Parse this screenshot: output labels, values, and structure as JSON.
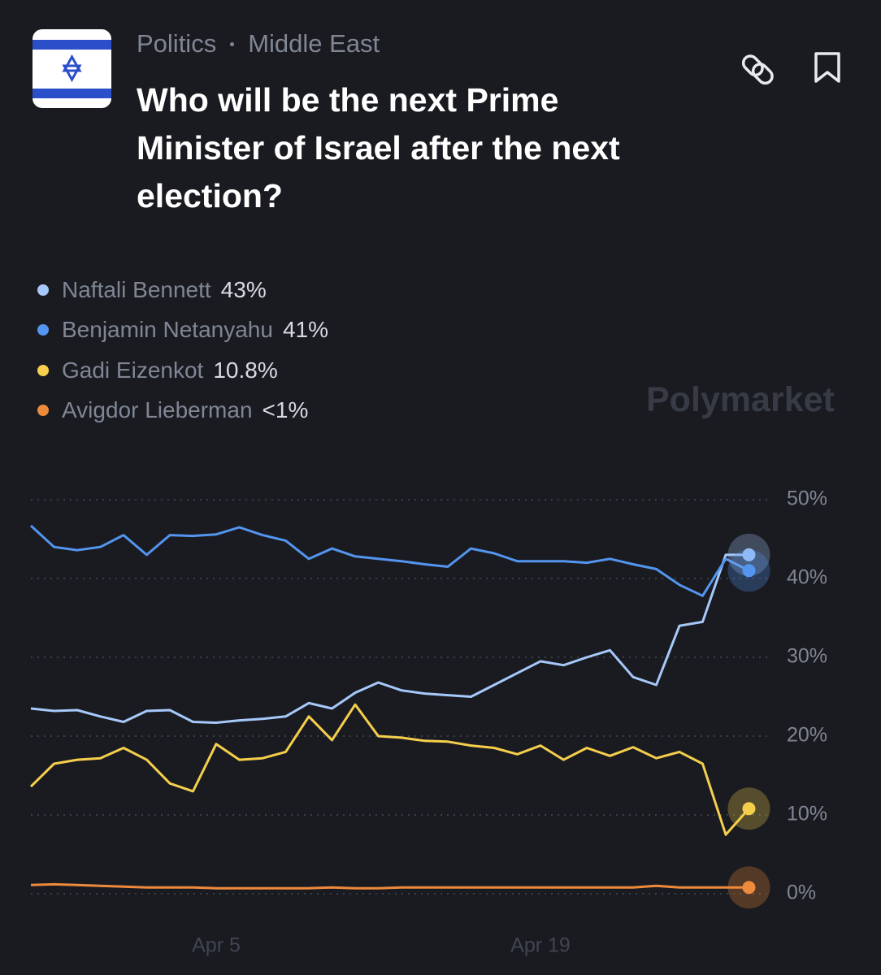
{
  "header": {
    "category": "Politics",
    "subcategory": "Middle East"
  },
  "watermark": "Polymarket",
  "chart_data": {
    "type": "line",
    "title": "Who will be the next Prime Minister of Israel after the next election?",
    "x": [
      "Mar 28",
      "Mar 29",
      "Mar 30",
      "Mar 31",
      "Apr 1",
      "Apr 2",
      "Apr 3",
      "Apr 4",
      "Apr 5",
      "Apr 6",
      "Apr 7",
      "Apr 8",
      "Apr 9",
      "Apr 10",
      "Apr 11",
      "Apr 12",
      "Apr 13",
      "Apr 14",
      "Apr 15",
      "Apr 16",
      "Apr 17",
      "Apr 18",
      "Apr 19",
      "Apr 20",
      "Apr 21",
      "Apr 22",
      "Apr 23",
      "Apr 24",
      "Apr 25",
      "Apr 26",
      "Apr 27",
      "Apr 28"
    ],
    "xticks": [
      "Apr 5",
      "Apr 19"
    ],
    "ylim": [
      0,
      50
    ],
    "yticks": [
      {
        "value": 0,
        "label": "0%"
      },
      {
        "value": 10,
        "label": "10%"
      },
      {
        "value": 20,
        "label": "20%"
      },
      {
        "value": 30,
        "label": "30%"
      },
      {
        "value": 40,
        "label": "40%"
      },
      {
        "value": 50,
        "label": "50%"
      }
    ],
    "grid": true,
    "series": [
      {
        "name": "Naftali Bennett",
        "value_label": "43%",
        "color": "#a6c9fa",
        "values": [
          23.5,
          23.2,
          23.3,
          22.5,
          21.8,
          23.2,
          23.3,
          21.8,
          21.7,
          22,
          22.2,
          22.5,
          24.2,
          23.5,
          25.5,
          26.8,
          25.8,
          25.4,
          25.2,
          25,
          26.5,
          28,
          29.5,
          29,
          30,
          30.9,
          27.5,
          26.5,
          34,
          34.5,
          43,
          43
        ]
      },
      {
        "name": "Benjamin Netanyahu",
        "value_label": "41%",
        "color": "#5395ef",
        "values": [
          46.7,
          44,
          43.6,
          44,
          45.5,
          43,
          45.5,
          45.4,
          45.6,
          46.5,
          45.5,
          44.8,
          42.5,
          43.8,
          42.8,
          42.5,
          42.2,
          41.8,
          41.5,
          43.8,
          43.2,
          42.2,
          42.2,
          42.2,
          42,
          42.5,
          41.8,
          41.2,
          39.2,
          37.8,
          42.5,
          41
        ]
      },
      {
        "name": "Gadi Eizenkot",
        "value_label": "10.8%",
        "color": "#f5cf4c",
        "values": [
          13.6,
          16.5,
          17,
          17.2,
          18.5,
          17,
          14,
          13,
          19,
          17,
          17.2,
          18,
          22.5,
          19.5,
          24,
          20,
          19.8,
          19.4,
          19.3,
          18.8,
          18.5,
          17.7,
          18.8,
          17,
          18.5,
          17.5,
          18.6,
          17.2,
          18,
          16.5,
          7.5,
          10.8
        ]
      },
      {
        "name": "Avigdor Lieberman",
        "value_label": "<1%",
        "color": "#ee8a3b",
        "values": [
          1.1,
          1.2,
          1.1,
          1,
          0.9,
          0.8,
          0.8,
          0.8,
          0.7,
          0.7,
          0.7,
          0.7,
          0.7,
          0.8,
          0.7,
          0.7,
          0.8,
          0.8,
          0.8,
          0.8,
          0.8,
          0.8,
          0.8,
          0.8,
          0.8,
          0.8,
          0.8,
          1,
          0.8,
          0.8,
          0.8,
          0.8
        ]
      }
    ]
  }
}
